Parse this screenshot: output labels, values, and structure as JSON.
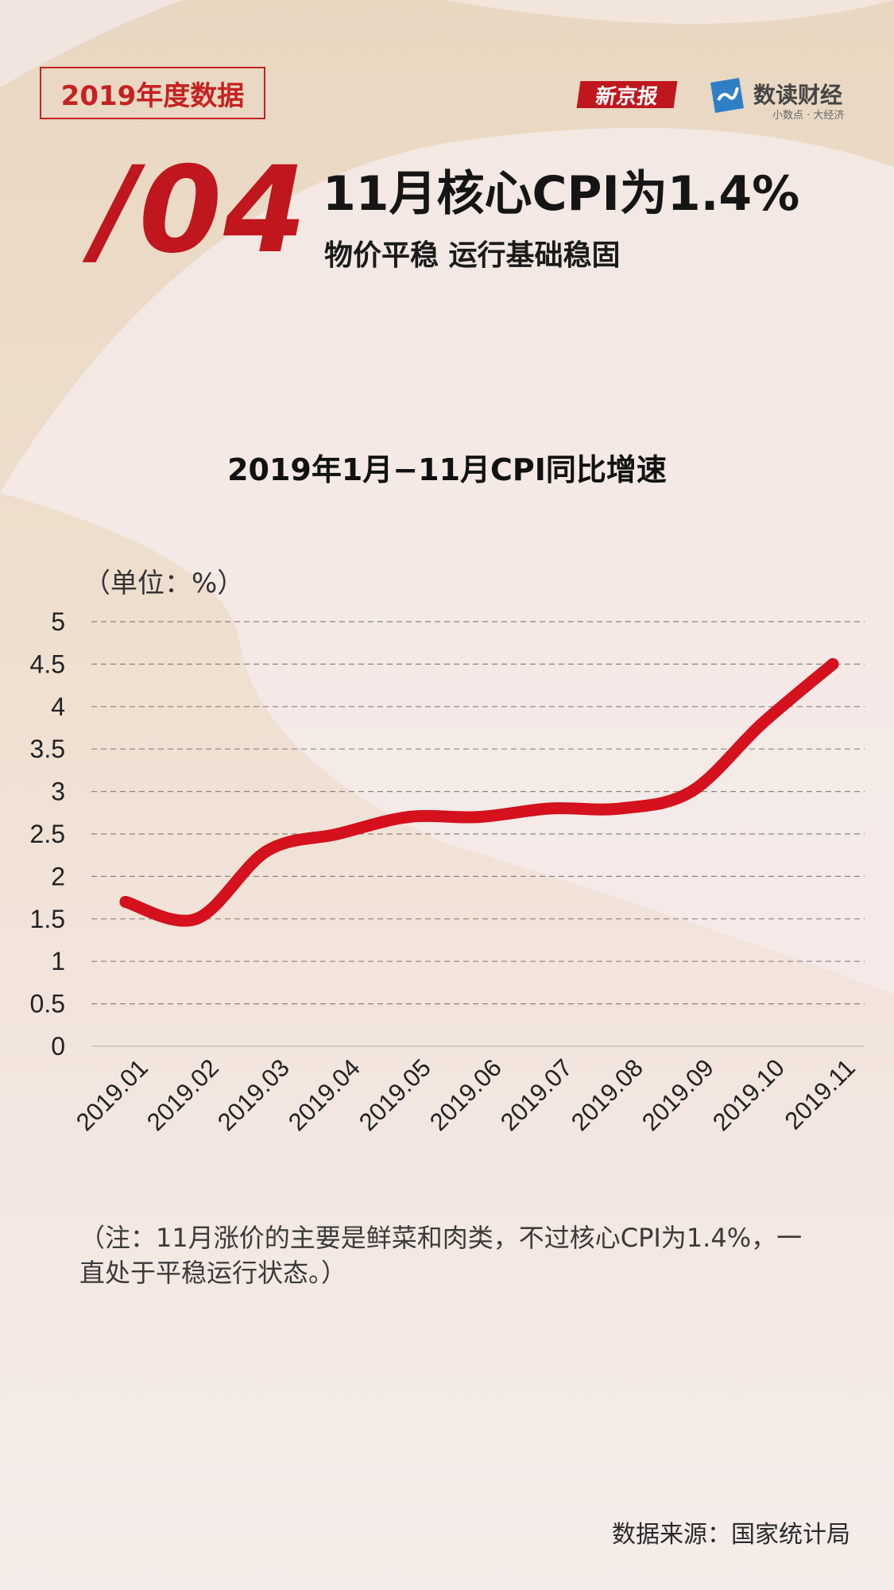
{
  "header": {
    "tag": "2019年度数据",
    "logo_xinjingbao": "新京报",
    "logo_shudu_name": "数读财经",
    "logo_shudu_slogan": "小数点 · 大经济"
  },
  "hero": {
    "number": "/04",
    "headline": "11月核心CPI为1.4%",
    "subheadline": "物价平稳 运行基础稳固"
  },
  "chart_data": {
    "type": "line",
    "title": "2019年1月−11月CPI同比增速",
    "unit_label": "（单位：%）",
    "categories": [
      "2019.01",
      "2019.02",
      "2019.03",
      "2019.04",
      "2019.05",
      "2019.06",
      "2019.07",
      "2019.08",
      "2019.09",
      "2019.10",
      "2019.11"
    ],
    "series": [
      {
        "values": [
          1.7,
          1.5,
          2.3,
          2.5,
          2.7,
          2.7,
          2.8,
          2.8,
          3.0,
          3.8,
          4.5
        ],
        "color": "#d4111c"
      }
    ],
    "ylim": [
      0,
      5
    ],
    "yticks": [
      "0",
      "0.5",
      "1",
      "1.5",
      "2",
      "2.5",
      "3",
      "3.5",
      "4",
      "4.5",
      "5"
    ],
    "grid": true
  },
  "footer": {
    "note": "（注：11月涨价的主要是鲜菜和肉类，不过核心CPI为1.4%，一直处于平稳运行状态。）",
    "source": "数据来源：国家统计局"
  },
  "colors": {
    "accent": "#c0161d",
    "line": "#d4111c"
  }
}
